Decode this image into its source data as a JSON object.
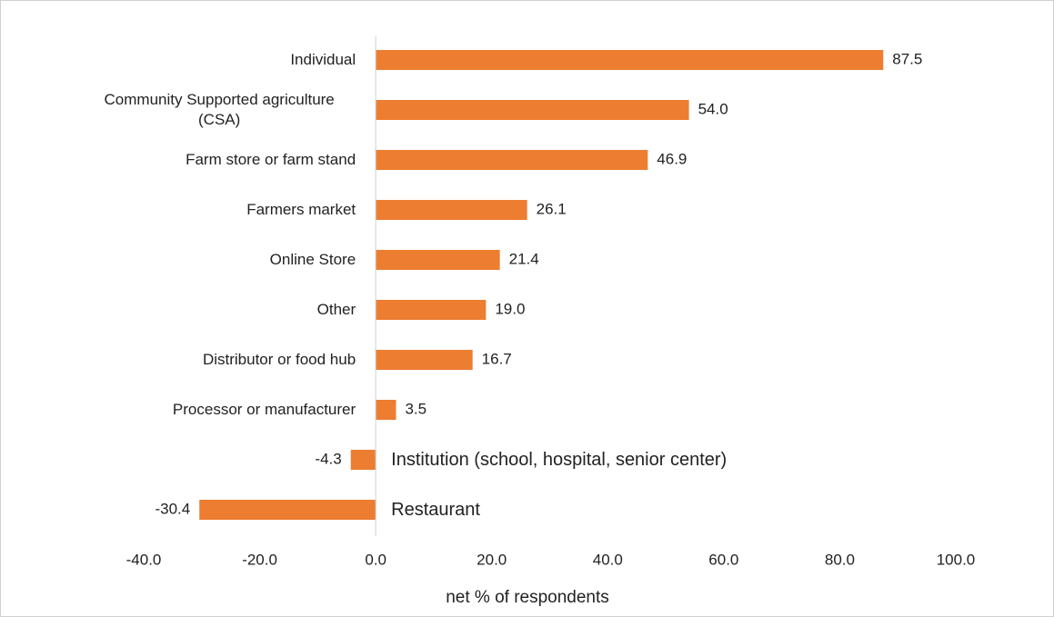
{
  "chart_data": {
    "type": "bar",
    "orientation": "horizontal",
    "x_label": "net % of respondents",
    "categories": [
      "Individual",
      "Community Supported agriculture (CSA)",
      "Farm store or farm stand",
      "Farmers market",
      "Online Store",
      "Other",
      "Distributor or food hub",
      "Processor or manufacturer",
      "Institution (school, hospital, senior center)",
      "Restaurant"
    ],
    "values": [
      87.5,
      54.0,
      46.9,
      26.1,
      21.4,
      19.0,
      16.7,
      3.5,
      -4.3,
      -30.4
    ],
    "value_labels": [
      "87.5",
      "54.0",
      "46.9",
      "26.1",
      "21.4",
      "19.0",
      "16.7",
      "3.5",
      "-4.3",
      "-30.4"
    ],
    "color": "#ed7d31",
    "xlim": [
      -40,
      100
    ],
    "xticks": [
      {
        "value": -40,
        "label": "-40.0"
      },
      {
        "value": -20,
        "label": "-20.0"
      },
      {
        "value": 0,
        "label": "0.0"
      },
      {
        "value": 20,
        "label": "20.0"
      },
      {
        "value": 40,
        "label": "40.0"
      },
      {
        "value": 60,
        "label": "60.0"
      },
      {
        "value": 80,
        "label": "80.0"
      },
      {
        "value": 100,
        "label": "100.0"
      }
    ],
    "grid": false
  }
}
